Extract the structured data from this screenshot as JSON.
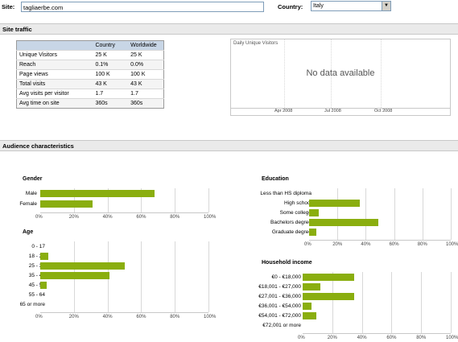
{
  "top": {
    "site_label": "Site:",
    "site_value": "tagliaerbe.com",
    "country_label": "Country:",
    "country_value": "Italy"
  },
  "site_traffic": {
    "heading": "Site traffic",
    "columns": [
      "",
      "Country",
      "Worldwide"
    ],
    "rows": [
      [
        "Unique Visitors",
        "25 K",
        "25 K"
      ],
      [
        "Reach",
        "0.1%",
        "0.0%"
      ],
      [
        "Page views",
        "100 K",
        "100 K"
      ],
      [
        "Total visits",
        "43 K",
        "43 K"
      ],
      [
        "Avg visits per visitor",
        "1.7",
        "1.7"
      ],
      [
        "Avg time on site",
        "360s",
        "360s"
      ]
    ],
    "visitor_chart": {
      "title": "Daily Unique Visitors",
      "message": "No data available",
      "ticks": [
        "Apr 2008",
        "Jul 2008",
        "Oct 2008"
      ]
    }
  },
  "audience": {
    "heading": "Audience characteristics",
    "axis_ticks": [
      "0%",
      "20%",
      "40%",
      "60%",
      "80%",
      "100%"
    ]
  },
  "chart_data": [
    {
      "type": "bar",
      "title": "Gender",
      "categories": [
        "Male",
        "Female"
      ],
      "values": [
        68,
        31
      ],
      "xlim": [
        0,
        100
      ]
    },
    {
      "type": "bar",
      "title": "Age",
      "categories": [
        "0 - 17",
        "18 - 24",
        "25 - 34",
        "35 - 44",
        "45 - 54",
        "55 - 64",
        "65 or more"
      ],
      "values": [
        0,
        5,
        50,
        41,
        4,
        0,
        0
      ],
      "xlim": [
        0,
        100
      ]
    },
    {
      "type": "bar",
      "title": "Education",
      "categories": [
        "Less than HS diploma",
        "High school",
        "Some college",
        "Bachelors degree",
        "Graduate degree"
      ],
      "values": [
        0,
        36,
        7,
        49,
        5
      ],
      "xlim": [
        0,
        100
      ]
    },
    {
      "type": "bar",
      "title": "Household income",
      "categories": [
        "€0 - €18,000",
        "€18,001 - €27,000",
        "€27,001 - €36,000",
        "€36,001 - €54,000",
        "€54,001 - €72,000",
        "€72,001 or more"
      ],
      "values": [
        35,
        12,
        35,
        6,
        9,
        0
      ],
      "xlim": [
        0,
        100
      ]
    }
  ]
}
